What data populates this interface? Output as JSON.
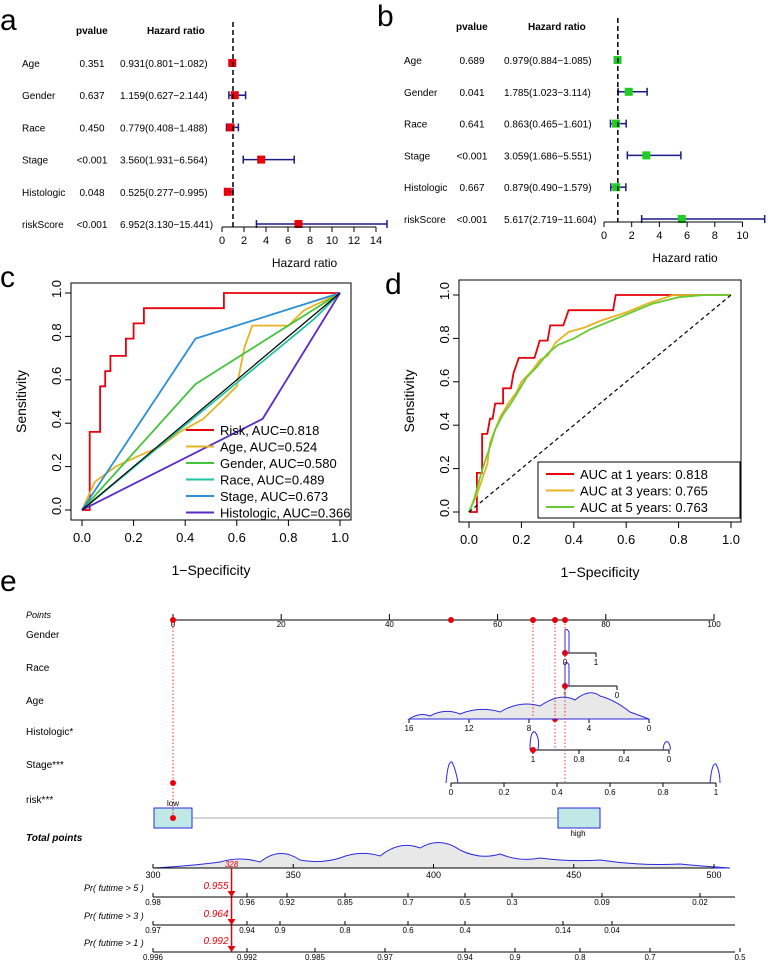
{
  "panel_labels": {
    "a": "a",
    "b": "b",
    "c": "c",
    "d": "d",
    "e": "e"
  },
  "forest_header": {
    "pvalue": "pvalue",
    "hazard": "Hazard ratio"
  },
  "colors": {
    "red": "#e8000b",
    "green": "#22cc22",
    "navy": "#1a1a8c",
    "orange": "#e6b422",
    "teal": "#20c4a0",
    "blue": "#2a8fd6",
    "purple": "#5a2bc8",
    "lime": "#66cc33"
  },
  "chart_data": [
    {
      "type": "forest",
      "panel": "a",
      "xlabel": "Hazard ratio",
      "xlim": [
        0,
        15
      ],
      "ticks": [
        "0",
        "2",
        "4",
        "6",
        "8",
        "10",
        "12",
        "14"
      ],
      "rows": [
        {
          "var": "Age",
          "p": "0.351",
          "hr_text": "0.931(0.801−1.082)",
          "hr": 0.931,
          "lo": 0.801,
          "hi": 1.082
        },
        {
          "var": "Gender",
          "p": "0.637",
          "hr_text": "1.159(0.627−2.144)",
          "hr": 1.159,
          "lo": 0.627,
          "hi": 2.144
        },
        {
          "var": "Race",
          "p": "0.450",
          "hr_text": "0.779(0.408−1.488)",
          "hr": 0.779,
          "lo": 0.408,
          "hi": 1.488
        },
        {
          "var": "Stage",
          "p": "<0.001",
          "hr_text": "3.560(1.931−6.564)",
          "hr": 3.56,
          "lo": 1.931,
          "hi": 6.564
        },
        {
          "var": "Histologic",
          "p": "0.048",
          "hr_text": "0.525(0.277−0.995)",
          "hr": 0.525,
          "lo": 0.277,
          "hi": 0.995
        },
        {
          "var": "riskScore",
          "p": "<0.001",
          "hr_text": "6.952(3.130−15.441)",
          "hr": 6.952,
          "lo": 3.13,
          "hi": 15.441
        }
      ]
    },
    {
      "type": "forest",
      "panel": "b",
      "xlabel": "Hazard ratio",
      "xlim": [
        0,
        11.7
      ],
      "ticks": [
        "0",
        "2",
        "4",
        "6",
        "8",
        "10"
      ],
      "rows": [
        {
          "var": "Age",
          "p": "0.689",
          "hr_text": "0.979(0.884−1.085)",
          "hr": 0.979,
          "lo": 0.884,
          "hi": 1.085
        },
        {
          "var": "Gender",
          "p": "0.041",
          "hr_text": "1.785(1.023−3.114)",
          "hr": 1.785,
          "lo": 1.023,
          "hi": 3.114
        },
        {
          "var": "Race",
          "p": "0.641",
          "hr_text": "0.863(0.465−1.601)",
          "hr": 0.863,
          "lo": 0.465,
          "hi": 1.601
        },
        {
          "var": "Stage",
          "p": "<0.001",
          "hr_text": "3.059(1.686−5.551)",
          "hr": 3.059,
          "lo": 1.686,
          "hi": 5.551
        },
        {
          "var": "Histologic",
          "p": "0.667",
          "hr_text": "0.879(0.490−1.579)",
          "hr": 0.879,
          "lo": 0.49,
          "hi": 1.579
        },
        {
          "var": "riskScore",
          "p": "<0.001",
          "hr_text": "5.617(2.719−11.604)",
          "hr": 5.617,
          "lo": 2.719,
          "hi": 11.604
        }
      ]
    },
    {
      "type": "line",
      "panel": "c",
      "xlabel": "1−Specificity",
      "ylabel": "Sensitivity",
      "xlim": [
        0,
        1
      ],
      "ylim": [
        0,
        1
      ],
      "ticks": [
        "0.0",
        "0.2",
        "0.4",
        "0.6",
        "0.8",
        "1.0"
      ],
      "series": [
        {
          "name": "Risk, AUC=0.818",
          "color": "#e8000b",
          "points": [
            [
              0,
              0
            ],
            [
              0.03,
              0
            ],
            [
              0.03,
              0.36
            ],
            [
              0.07,
              0.36
            ],
            [
              0.07,
              0.57
            ],
            [
              0.09,
              0.57
            ],
            [
              0.09,
              0.64
            ],
            [
              0.11,
              0.64
            ],
            [
              0.11,
              0.71
            ],
            [
              0.17,
              0.71
            ],
            [
              0.17,
              0.79
            ],
            [
              0.2,
              0.79
            ],
            [
              0.2,
              0.86
            ],
            [
              0.24,
              0.86
            ],
            [
              0.24,
              0.93
            ],
            [
              0.35,
              0.93
            ],
            [
              0.55,
              0.93
            ],
            [
              0.55,
              1
            ],
            [
              1,
              1
            ]
          ]
        },
        {
          "name": "Age, AUC=0.524",
          "color": "#e6b422",
          "points": [
            [
              0,
              0
            ],
            [
              0.05,
              0.13
            ],
            [
              0.13,
              0.2
            ],
            [
              0.22,
              0.25
            ],
            [
              0.3,
              0.29
            ],
            [
              0.38,
              0.36
            ],
            [
              0.47,
              0.42
            ],
            [
              0.54,
              0.5
            ],
            [
              0.6,
              0.57
            ],
            [
              0.63,
              0.75
            ],
            [
              0.66,
              0.85
            ],
            [
              0.72,
              0.85
            ],
            [
              0.8,
              0.85
            ],
            [
              0.86,
              0.92
            ],
            [
              1,
              1
            ]
          ]
        },
        {
          "name": "Gender, AUC=0.580",
          "color": "#44c43c",
          "points": [
            [
              0,
              0
            ],
            [
              0.44,
              0.58
            ],
            [
              1,
              1
            ]
          ]
        },
        {
          "name": "Race, AUC=0.489",
          "color": "#20c4a0",
          "points": [
            [
              0,
              0
            ],
            [
              0.9,
              0.88
            ],
            [
              1,
              1
            ]
          ]
        },
        {
          "name": "Stage, AUC=0.673",
          "color": "#2a8fd6",
          "points": [
            [
              0,
              0
            ],
            [
              0.44,
              0.79
            ],
            [
              1,
              1
            ]
          ]
        },
        {
          "name": "Histologic, AUC=0.366",
          "color": "#5a2bc8",
          "points": [
            [
              0,
              0
            ],
            [
              0.7,
              0.42
            ],
            [
              1,
              1
            ]
          ]
        },
        {
          "name": "",
          "color": "#000000",
          "points": [
            [
              0,
              0
            ],
            [
              1,
              1
            ]
          ]
        }
      ]
    },
    {
      "type": "line",
      "panel": "d",
      "xlabel": "1−Specificity",
      "ylabel": "Sensitivity",
      "xlim": [
        0,
        1
      ],
      "ylim": [
        0,
        1
      ],
      "ticks": [
        "0.0",
        "0.2",
        "0.4",
        "0.6",
        "0.8",
        "1.0"
      ],
      "series": [
        {
          "name": "AUC at 1 years: 0.818",
          "color": "#e8000b",
          "points": [
            [
              0,
              0
            ],
            [
              0.03,
              0
            ],
            [
              0.03,
              0.18
            ],
            [
              0.05,
              0.18
            ],
            [
              0.05,
              0.36
            ],
            [
              0.07,
              0.36
            ],
            [
              0.08,
              0.43
            ],
            [
              0.09,
              0.43
            ],
            [
              0.1,
              0.5
            ],
            [
              0.13,
              0.5
            ],
            [
              0.13,
              0.57
            ],
            [
              0.16,
              0.57
            ],
            [
              0.17,
              0.64
            ],
            [
              0.19,
              0.71
            ],
            [
              0.25,
              0.71
            ],
            [
              0.27,
              0.79
            ],
            [
              0.3,
              0.79
            ],
            [
              0.31,
              0.86
            ],
            [
              0.36,
              0.86
            ],
            [
              0.38,
              0.93
            ],
            [
              0.55,
              0.93
            ],
            [
              0.56,
              1
            ],
            [
              1,
              1
            ]
          ]
        },
        {
          "name": "AUC at 3 years: 0.765",
          "color": "#e6b422",
          "points": [
            [
              0,
              0
            ],
            [
              0.03,
              0.08
            ],
            [
              0.05,
              0.15
            ],
            [
              0.07,
              0.22
            ],
            [
              0.08,
              0.32
            ],
            [
              0.1,
              0.38
            ],
            [
              0.12,
              0.44
            ],
            [
              0.15,
              0.5
            ],
            [
              0.18,
              0.55
            ],
            [
              0.2,
              0.6
            ],
            [
              0.24,
              0.65
            ],
            [
              0.27,
              0.7
            ],
            [
              0.3,
              0.72
            ],
            [
              0.33,
              0.78
            ],
            [
              0.38,
              0.83
            ],
            [
              0.44,
              0.85
            ],
            [
              0.5,
              0.88
            ],
            [
              0.6,
              0.92
            ],
            [
              0.68,
              0.96
            ],
            [
              0.78,
              1
            ],
            [
              1,
              1
            ]
          ]
        },
        {
          "name": "AUC at 5 years: 0.763",
          "color": "#66cc33",
          "points": [
            [
              0,
              0
            ],
            [
              0.02,
              0.06
            ],
            [
              0.04,
              0.15
            ],
            [
              0.06,
              0.23
            ],
            [
              0.08,
              0.3
            ],
            [
              0.1,
              0.38
            ],
            [
              0.13,
              0.45
            ],
            [
              0.16,
              0.5
            ],
            [
              0.19,
              0.56
            ],
            [
              0.22,
              0.62
            ],
            [
              0.26,
              0.67
            ],
            [
              0.3,
              0.73
            ],
            [
              0.34,
              0.77
            ],
            [
              0.4,
              0.8
            ],
            [
              0.46,
              0.84
            ],
            [
              0.54,
              0.88
            ],
            [
              0.62,
              0.92
            ],
            [
              0.7,
              0.96
            ],
            [
              0.8,
              0.99
            ],
            [
              0.9,
              1
            ],
            [
              1,
              1
            ]
          ]
        },
        {
          "name": "",
          "color": "#000000",
          "points": [
            [
              0,
              0
            ],
            [
              1,
              1
            ]
          ]
        }
      ]
    },
    {
      "type": "nomogram",
      "panel": "e",
      "points_label": "Points",
      "points_ticks": [
        "0",
        "20",
        "40",
        "60",
        "80",
        "100"
      ],
      "rows": [
        {
          "label": "Gender",
          "ticks": [
            "0",
            "1"
          ],
          "val_pos": 0.71
        },
        {
          "label": "Race",
          "ticks": [
            "1",
            "0"
          ],
          "val_pos": 0.71
        },
        {
          "label": "Age",
          "ticks": [
            "16",
            "12",
            "8",
            "4",
            "0"
          ],
          "val_pos": 0.66
        },
        {
          "label": "Histologic*",
          "ticks": [
            "1",
            "0.8",
            "0.4",
            "0"
          ],
          "val_pos": 0.56
        },
        {
          "label": "Stage***",
          "ticks": [
            "0",
            "0.2",
            "0.4",
            "0.6",
            "0.8",
            "1"
          ],
          "val_pos": 0.51
        },
        {
          "label": "risk***",
          "ticks": [
            "low",
            "high"
          ],
          "val_pos": 0
        }
      ],
      "total_label": "Total points",
      "total_ticks": [
        "300",
        "350",
        "400",
        "450",
        "500"
      ],
      "total_value": "328",
      "probs": [
        {
          "label": "Pr( futime > 5 )",
          "ticks": [
            "0.98",
            "0.96",
            "0.92",
            "0.85",
            "0.7",
            "0.5",
            "0.3",
            "0.09",
            "0.02"
          ],
          "value": "0.955"
        },
        {
          "label": "Pr( futime > 3 )",
          "ticks": [
            "0.97",
            "0.94",
            "0.9",
            "0.8",
            "0.6",
            "0.4",
            "0.14",
            "0.04"
          ],
          "value": "0.964"
        },
        {
          "label": "Pr( futime > 1 )",
          "ticks": [
            "0.996",
            "0.992",
            "0.985",
            "0.97",
            "0.94",
            "0.9",
            "0.8",
            "0.7",
            "0.5"
          ],
          "value": "0.992"
        }
      ]
    }
  ]
}
